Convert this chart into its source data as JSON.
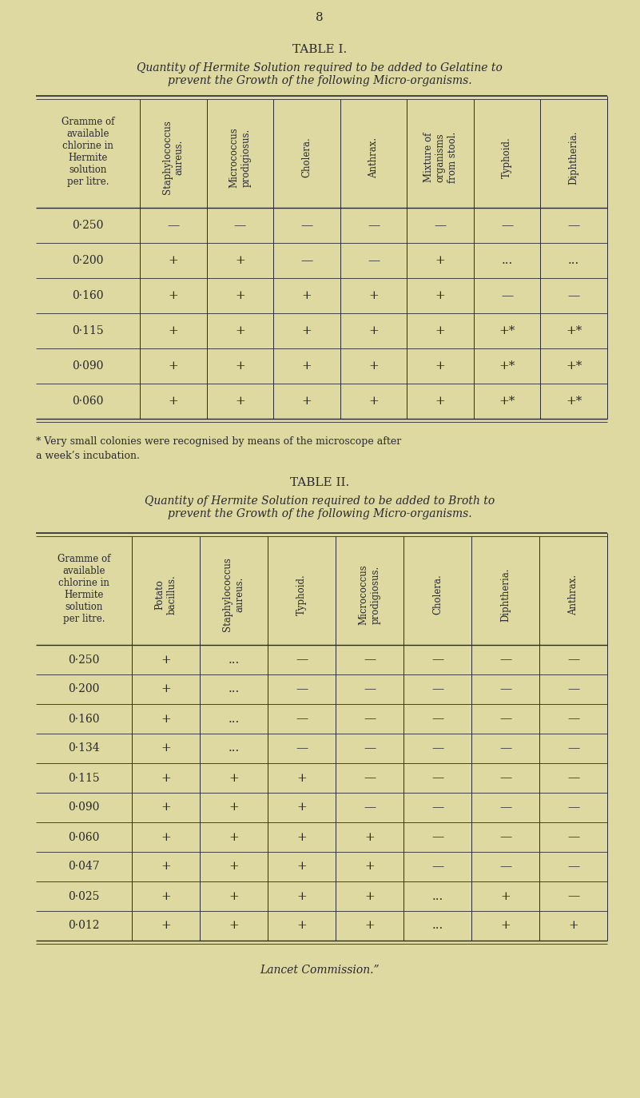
{
  "bg_color": "#ddd9a0",
  "text_color": "#2a2832",
  "page_number": "8",
  "table1": {
    "title": "TABLE I.",
    "title_display": "Table I.",
    "subtitle_line1": "Quantity of Hermite Solution required to be added to Gelatine to",
    "subtitle_line2": "prevent the Growth of the following Micro-organisms.",
    "col0_header": "Gramme of\navailable\nchlorine in\nHermite\nsolution\nper litre.",
    "columns": [
      "Staphylococcus\naureus.",
      "Micrococcus\nprodigiosus.",
      "Cholera.",
      "Anthrax.",
      "Mixture of\norganisms\nfrom stool.",
      "Typhoid.",
      "Diphtheria."
    ],
    "rows": [
      {
        "label": "0·250",
        "values": [
          "—",
          "—",
          "—",
          "—",
          "—",
          "—",
          "—"
        ]
      },
      {
        "label": "0·200",
        "values": [
          "+",
          "+",
          "—",
          "—",
          "+",
          "...",
          "..."
        ]
      },
      {
        "label": "0·160",
        "values": [
          "+",
          "+",
          "+",
          "+",
          "+",
          "—",
          "—"
        ]
      },
      {
        "label": "0·115",
        "values": [
          "+",
          "+",
          "+",
          "+",
          "+",
          "+*",
          "+*"
        ]
      },
      {
        "label": "0·090",
        "values": [
          "+",
          "+",
          "+",
          "+",
          "+",
          "+*",
          "+*"
        ]
      },
      {
        "label": "0·060",
        "values": [
          "+",
          "+",
          "+",
          "+",
          "+",
          "+*",
          "+*"
        ]
      }
    ],
    "footnote_line1": "* Very small colonies were recognised by means of the microscope after",
    "footnote_line2": "a week’s incubation."
  },
  "table2": {
    "title_display": "Table II.",
    "subtitle_line1": "Quantity of Hermite Solution required to be added to Broth to",
    "subtitle_line2": "prevent the Growth of the following Micro-organisms.",
    "col0_header": "Gramme of\navailable\nchlorine in\nHermite\nsolution\nper litre.",
    "columns": [
      "Potato\nbacillus.",
      "Staphylococcus\naureus.",
      "Typhoid.",
      "Micrococcus\nprodigiosus.",
      "Cholera.",
      "Diphtheria.",
      "Anthrax."
    ],
    "rows": [
      {
        "label": "0·250",
        "values": [
          "+",
          "...",
          "—",
          "—",
          "—",
          "—",
          "—"
        ]
      },
      {
        "label": "0·200",
        "values": [
          "+",
          "...",
          "—",
          "—",
          "—",
          "—",
          "—"
        ]
      },
      {
        "label": "0·160",
        "values": [
          "+",
          "...",
          "—",
          "—",
          "—",
          "—",
          "—"
        ]
      },
      {
        "label": "0·134",
        "values": [
          "+",
          "...",
          "—",
          "—",
          "—",
          "—",
          "—"
        ]
      },
      {
        "label": "0·115",
        "values": [
          "+",
          "+",
          "+",
          "—",
          "—",
          "—",
          "—"
        ]
      },
      {
        "label": "0·090",
        "values": [
          "+",
          "+",
          "+",
          "—",
          "—",
          "—",
          "—"
        ]
      },
      {
        "label": "0·060",
        "values": [
          "+",
          "+",
          "+",
          "+",
          "—",
          "—",
          "—"
        ]
      },
      {
        "label": "0·047",
        "values": [
          "+",
          "+",
          "+",
          "+",
          "—",
          "—",
          "—"
        ]
      },
      {
        "label": "0·025",
        "values": [
          "+",
          "+",
          "+",
          "+",
          "...",
          "+",
          "—"
        ]
      },
      {
        "label": "0·012",
        "values": [
          "+",
          "+",
          "+",
          "+",
          "...",
          "+",
          "+"
        ]
      }
    ],
    "footer": "Lancet Commission.”"
  }
}
